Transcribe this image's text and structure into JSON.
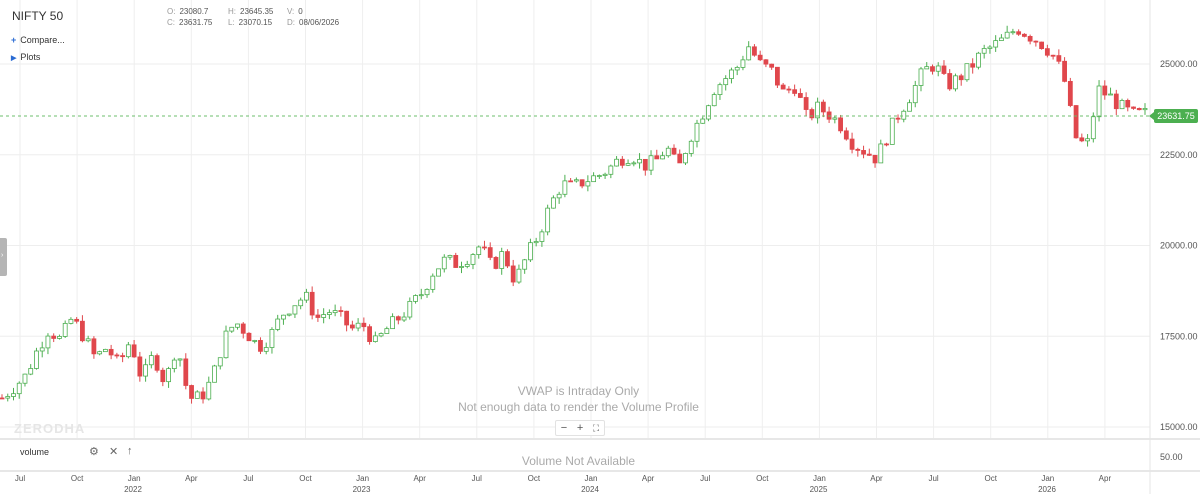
{
  "symbol": "NIFTY 50",
  "ohlc": {
    "open_label": "O:",
    "open": "23080.7",
    "high_label": "H:",
    "high": "23645.35",
    "volume_label": "V:",
    "volume": "0",
    "close_label": "C:",
    "close": "23631.75",
    "low_label": "L:",
    "low": "23070.15",
    "date_label": "D:",
    "date": "08/06/2026"
  },
  "sidebar": {
    "compare_label": "Compare...",
    "plots_label": "Plots"
  },
  "messages": {
    "vwap": "VWAP is Intraday Only",
    "volume_profile": "Not enough data to render the Volume Profile",
    "volume_na": "Volume Not Available"
  },
  "watermark": "ZERODHA",
  "indicator": {
    "name": "volume"
  },
  "last_price_tag": "23631.75",
  "colors": {
    "up": "#4caf50",
    "down": "#e0474c",
    "price_line": "#6cbf6c",
    "grid": "#eeeeee"
  },
  "icons": {
    "compare": "plus-icon",
    "plots": "triangle-right-icon",
    "settings": "gear-icon",
    "close": "close-icon",
    "move": "arrow-up-icon",
    "zoom_out": "minus-icon",
    "zoom_in": "plus-icon",
    "fullscreen": "fullscreen-icon"
  },
  "chart_data": {
    "type": "candlestick",
    "series_name": "NIFTY 50",
    "y_ticks": [
      "25000.00",
      "22500.00",
      "20000.00",
      "17500.00",
      "15000.00"
    ],
    "y_tick_values": [
      25000,
      22500,
      20000,
      17500,
      15000
    ],
    "volume_tick": "50.00",
    "month_ticks": [
      "Jul",
      "Oct",
      "Jan",
      "Apr",
      "Jul",
      "Oct",
      "Jan",
      "Apr",
      "Jul",
      "Oct",
      "Jan",
      "Apr",
      "Jul",
      "Oct",
      "Jan",
      "Apr",
      "Jul",
      "Oct",
      "Jan",
      "Apr"
    ],
    "year_ticks": [
      "2022",
      "2023",
      "2024",
      "2025",
      "2026"
    ],
    "ylim": [
      14900,
      26400
    ],
    "last_price": 23631.75,
    "approx_closes": [
      15800,
      16100,
      16400,
      17100,
      17700,
      17400,
      18000,
      17500,
      16900,
      17200,
      16700,
      17400,
      16300,
      17000,
      16200,
      17300,
      15800,
      15800,
      16300,
      17400,
      17900,
      17600,
      17200,
      17500,
      18100,
      18400,
      18600,
      18000,
      18200,
      18000,
      17700,
      17800,
      17300,
      17700,
      18000,
      18300,
      18700,
      19300,
      19600,
      19500,
      19700,
      20000,
      19400,
      19800,
      19000,
      19700,
      20300,
      21100,
      21700,
      21600,
      21800,
      21900,
      22100,
      22400,
      22500,
      22200,
      22300,
      22700,
      22100,
      23000,
      23600,
      24300,
      24600,
      24900,
      25500,
      25000,
      24800,
      24200,
      24400,
      23500,
      23800,
      23600,
      23300,
      22800,
      22600,
      22400,
      23100,
      23700,
      24200,
      24800,
      25000,
      24400,
      24600,
      24900,
      25300,
      25500,
      25700,
      26000,
      25800,
      25600,
      25300,
      24700,
      23000,
      22700,
      24300,
      24100,
      23800,
      23600,
      23631
    ]
  }
}
